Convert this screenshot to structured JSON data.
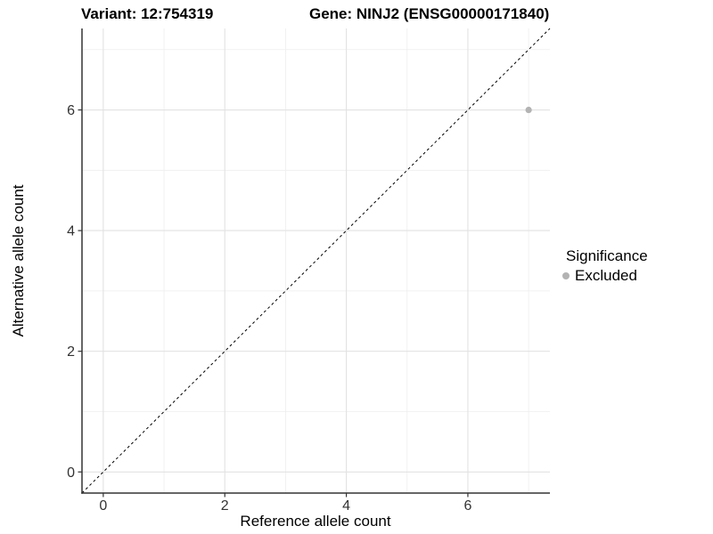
{
  "header": {
    "variant_title": "Variant: 12:754319",
    "gene_title": "Gene: NINJ2 (ENSG00000171840)"
  },
  "chart_data": {
    "type": "scatter",
    "xlabel": "Reference allele count",
    "ylabel": "Alternative allele count",
    "xlim": [
      -0.35,
      7.35
    ],
    "ylim": [
      -0.35,
      7.35
    ],
    "x_major_ticks": [
      0,
      2,
      4,
      6
    ],
    "y_major_ticks": [
      0,
      2,
      4,
      6
    ],
    "x_minor_ticks": [
      1,
      3,
      5,
      7
    ],
    "y_minor_ticks": [
      1,
      3,
      5,
      7
    ],
    "x_tick_labels": [
      "0",
      "2",
      "4",
      "6"
    ],
    "y_tick_labels": [
      "0",
      "2",
      "4",
      "6"
    ],
    "grid": true,
    "identity_line": {
      "style": "dashed",
      "from": [
        -0.35,
        -0.35
      ],
      "to": [
        7.35,
        7.35
      ],
      "color": "#000000"
    },
    "series": [
      {
        "name": "Excluded",
        "color": "#b3b3b3",
        "points": [
          [
            7,
            6
          ]
        ]
      }
    ],
    "legend": {
      "title": "Significance",
      "position": "right",
      "entries": [
        {
          "label": "Excluded",
          "color": "#b3b3b3"
        }
      ]
    }
  },
  "colors": {
    "major_grid": "#e2e2e2",
    "minor_grid": "#eeeeee",
    "axis_line": "#333333",
    "tick_mark": "#333333",
    "point": "#b3b3b3"
  }
}
